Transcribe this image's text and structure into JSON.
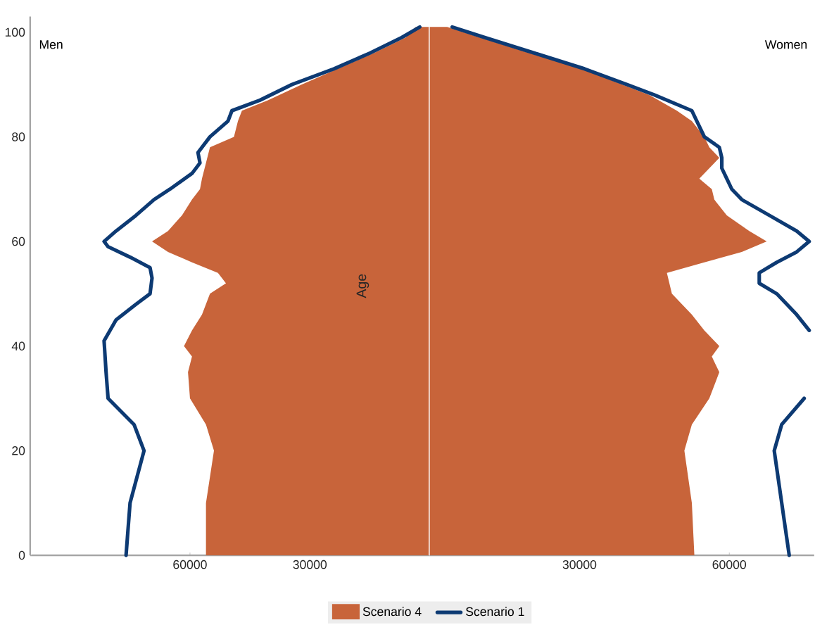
{
  "chart_data": [
    {
      "type": "area",
      "orientation": "horizontal",
      "xlim": [
        100000,
        0
      ],
      "xticks": [
        60000,
        30000
      ],
      "ylim": [
        0,
        103
      ],
      "yticks": [
        0,
        20,
        40,
        60,
        80,
        100
      ],
      "ylabel": "Age",
      "annotations": [
        "Men"
      ],
      "series": [
        {
          "color": "#c8643a",
          "x": [
            0,
            10,
            20,
            25,
            30,
            35,
            38,
            40,
            43,
            46,
            50,
            52,
            54,
            56,
            58,
            60,
            62,
            65,
            68,
            70,
            72,
            75,
            78,
            80,
            83,
            85,
            87,
            90,
            93,
            96,
            99,
            101
          ],
          "values": [
            56000,
            56000,
            54000,
            56000,
            60000,
            60500,
            59500,
            61500,
            59500,
            57000,
            55000,
            51000,
            53000,
            59500,
            65500,
            69500,
            65500,
            62000,
            59500,
            57500,
            57000,
            56000,
            55000,
            49000,
            48000,
            47000,
            40500,
            32000,
            23000,
            14000,
            6000,
            3500
          ]
        },
        {
          "type": "line",
          "color": "#0d3a73",
          "x": [
            0,
            10,
            20,
            25,
            30,
            35,
            41,
            45,
            48,
            50,
            53,
            55,
            57,
            59,
            60,
            62,
            65,
            68,
            70,
            73,
            75,
            77,
            80,
            83,
            85,
            87,
            90,
            93,
            96,
            99,
            101
          ],
          "values": [
            76000,
            75000,
            71500,
            74000,
            80500,
            81000,
            81500,
            78500,
            73500,
            70000,
            69500,
            70000,
            75000,
            80500,
            81500,
            78500,
            73500,
            69000,
            65000,
            59500,
            57500,
            58000,
            55000,
            50500,
            49500,
            42500,
            34500,
            24000,
            15000,
            7000,
            2500
          ]
        }
      ]
    },
    {
      "type": "area",
      "orientation": "horizontal",
      "xlim": [
        0,
        77000
      ],
      "xticks": [
        30000,
        60000
      ],
      "ylim": [
        0,
        103
      ],
      "yticks": [
        0,
        20,
        40,
        60,
        80,
        100
      ],
      "tick_labels": "x",
      "annotations": [
        "Women"
      ],
      "legend": "bottom",
      "series": [
        {
          "name": "Scenario 4",
          "color": "#c8643a",
          "x": [
            0,
            10,
            20,
            25,
            30,
            35,
            38,
            40,
            43,
            46,
            50,
            52,
            54,
            56,
            58,
            60,
            62,
            65,
            68,
            70,
            72,
            74,
            76,
            78,
            80,
            83,
            85,
            88,
            90,
            93,
            96,
            99,
            101
          ],
          "values": [
            53000,
            52500,
            51000,
            52500,
            56000,
            58000,
            56500,
            58000,
            55000,
            52500,
            48500,
            48000,
            47500,
            55000,
            62500,
            67500,
            64000,
            59500,
            57000,
            56500,
            54000,
            56000,
            58000,
            56000,
            55000,
            52500,
            49500,
            44000,
            38500,
            30500,
            20000,
            10000,
            3500
          ]
        },
        {
          "type": "line",
          "name": "Scenario 1",
          "color": "#0d3a73",
          "x": [
            0,
            10,
            20,
            25,
            30,
            35,
            38,
            40,
            43,
            46,
            50,
            52,
            54,
            56,
            58,
            60,
            62,
            65,
            68,
            70,
            72,
            74,
            76,
            78,
            80,
            82,
            85,
            88,
            90,
            93,
            96,
            99,
            101
          ],
          "values": [
            72000,
            70500,
            69000,
            70500,
            75000,
            null,
            null,
            null,
            76000,
            73500,
            69500,
            66000,
            66000,
            69500,
            73500,
            76000,
            73500,
            68000,
            62500,
            60500,
            59500,
            58500,
            58500,
            58000,
            55000,
            54000,
            52500,
            45000,
            39500,
            31000,
            21000,
            11000,
            4500
          ]
        }
      ]
    }
  ]
}
